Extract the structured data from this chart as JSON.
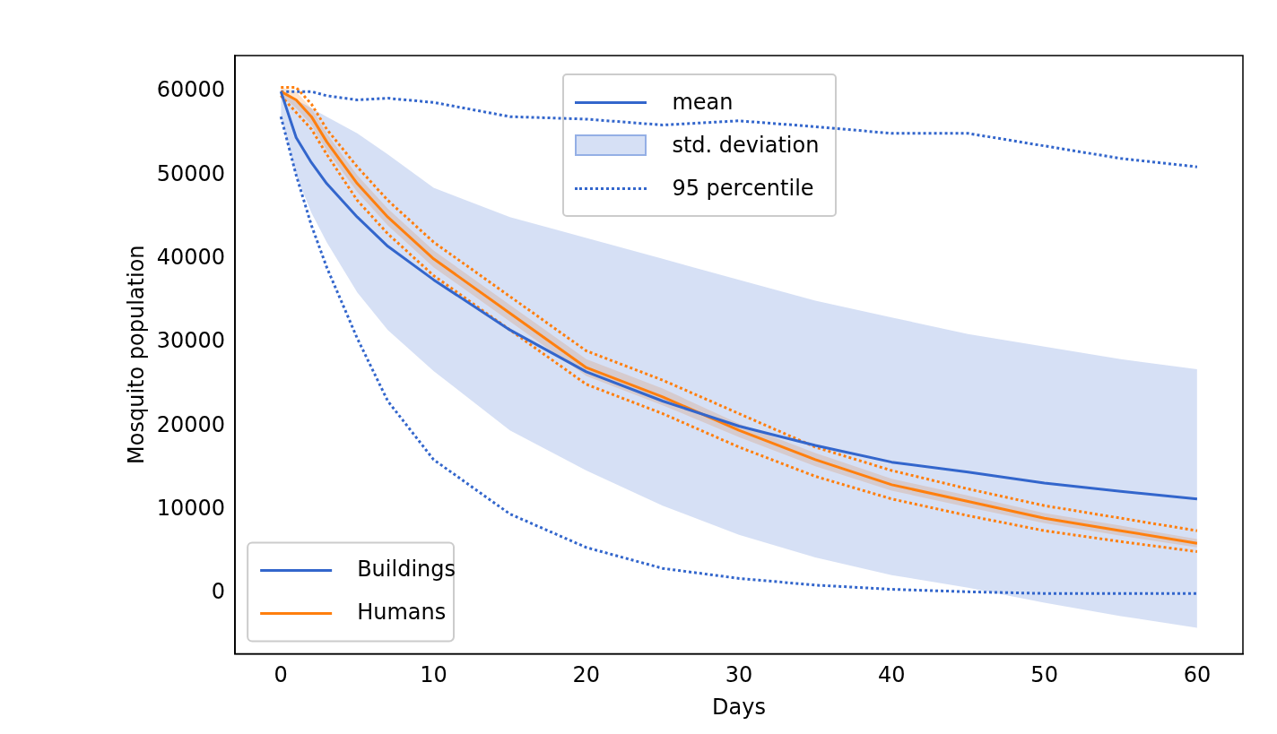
{
  "chart_data": {
    "type": "line",
    "xlabel": "Days",
    "ylabel": "Mosquito population",
    "x": [
      0,
      1,
      2,
      3,
      5,
      7,
      10,
      15,
      20,
      25,
      30,
      35,
      40,
      45,
      50,
      55,
      60
    ],
    "xlim": [
      -3,
      63
    ],
    "xticks": [
      0,
      10,
      20,
      30,
      40,
      50,
      60
    ],
    "ylim": [
      -7200,
      64300
    ],
    "yticks": [
      0,
      10000,
      20000,
      30000,
      40000,
      50000,
      60000
    ],
    "grid": false,
    "legend": "bottom left",
    "marker": "none",
    "annotations": [
      "mean",
      "std. deviation",
      "95 percentile"
    ],
    "series": [
      {
        "name": "Buildings",
        "color": "#3366cc",
        "line_style": "solid",
        "values": [
          60000,
          54500,
          51500,
          49000,
          45000,
          41500,
          37500,
          31500,
          26500,
          23000,
          20000,
          17700,
          15700,
          14500,
          13200,
          12200,
          11300
        ],
        "lower": [
          57000,
          50000,
          45500,
          42000,
          36000,
          31500,
          26600,
          19500,
          14700,
          10500,
          7000,
          4300,
          2200,
          700,
          -1100,
          -2700,
          -4100
        ],
        "upper": [
          60000,
          59000,
          58000,
          57000,
          55000,
          52500,
          48500,
          45000,
          42500,
          40000,
          37500,
          35000,
          33000,
          31000,
          29500,
          28000,
          26800
        ]
      },
      {
        "name": "Humans",
        "color": "#ff7f0e",
        "line_style": "solid",
        "values": [
          60000,
          59000,
          57000,
          54000,
          49000,
          45000,
          40000,
          33500,
          27000,
          23500,
          19500,
          16000,
          13000,
          11000,
          9000,
          7500,
          6000
        ],
        "lower": [
          59500,
          58000,
          56000,
          53000,
          48000,
          44000,
          39000,
          32500,
          26000,
          22500,
          18700,
          15200,
          12300,
          10300,
          8400,
          6900,
          5500
        ],
        "upper": [
          60500,
          60000,
          58000,
          55000,
          50000,
          46000,
          41000,
          34500,
          28000,
          24500,
          20300,
          16800,
          13700,
          11700,
          9600,
          8100,
          6500
        ]
      },
      {
        "color": "#3366cc",
        "line_style": "dotted",
        "values": [
          57000,
          50000,
          44000,
          39000,
          30500,
          23000,
          16000,
          9500,
          5500,
          3000,
          1800,
          1000,
          500,
          200,
          0,
          0,
          0
        ]
      },
      {
        "color": "#3366cc",
        "line_style": "dotted",
        "values": [
          60000,
          60000,
          60000,
          59500,
          59000,
          59200,
          58700,
          57000,
          56700,
          56000,
          56500,
          55800,
          55000,
          55000,
          53500,
          52000,
          51000
        ]
      },
      {
        "color": "#ff7f0e",
        "line_style": "dotted",
        "values": [
          60500,
          60500,
          58500,
          55500,
          51000,
          47000,
          42000,
          35500,
          29000,
          25500,
          21500,
          17500,
          14700,
          12500,
          10500,
          9000,
          7500
        ]
      },
      {
        "color": "#ff7f0e",
        "line_style": "dotted",
        "values": [
          59500,
          57500,
          55500,
          52500,
          47000,
          43000,
          38000,
          31500,
          25000,
          21500,
          17500,
          14000,
          11300,
          9300,
          7500,
          6200,
          5000
        ]
      }
    ]
  }
}
